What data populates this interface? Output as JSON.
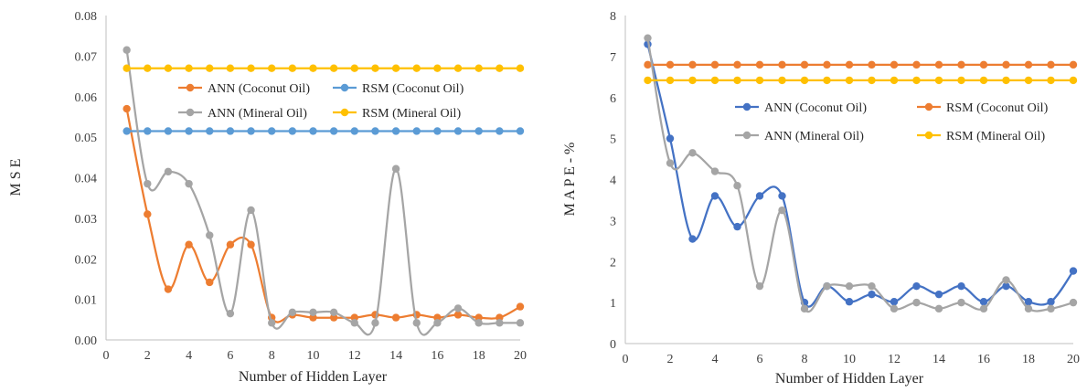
{
  "chart_data": [
    {
      "type": "line",
      "title": "",
      "xlabel": "Number of Hidden Layer",
      "ylabel": "M S E",
      "xlim": [
        0,
        20
      ],
      "ylim": [
        0,
        0.08
      ],
      "xticks": [
        0,
        2,
        4,
        6,
        8,
        10,
        12,
        14,
        16,
        18,
        20
      ],
      "yticks": [
        0,
        0.01,
        0.02,
        0.03,
        0.04,
        0.05,
        0.06,
        0.07,
        0.08
      ],
      "ytick_labels": [
        "0.00",
        "0.01",
        "0.02",
        "0.03",
        "0.04",
        "0.05",
        "0.06",
        "0.07",
        "0.08"
      ],
      "grid": false,
      "legend_position": "upper-center",
      "x": [
        1,
        2,
        3,
        4,
        5,
        6,
        7,
        8,
        9,
        10,
        11,
        12,
        13,
        14,
        15,
        16,
        17,
        18,
        19,
        20
      ],
      "series": [
        {
          "name": "ANN (Coconut Oil)",
          "color": "#ED7D31",
          "values": [
            0.057,
            0.031,
            0.0125,
            0.0235,
            0.0142,
            0.0235,
            0.0235,
            0.0055,
            0.0062,
            0.0055,
            0.0055,
            0.0055,
            0.0062,
            0.0055,
            0.0062,
            0.0055,
            0.0062,
            0.0055,
            0.0055,
            0.0082
          ]
        },
        {
          "name": "RSM (Coconut Oil)",
          "color": "#5B9BD5",
          "values": [
            0.0515,
            0.0515,
            0.0515,
            0.0515,
            0.0515,
            0.0515,
            0.0515,
            0.0515,
            0.0515,
            0.0515,
            0.0515,
            0.0515,
            0.0515,
            0.0515,
            0.0515,
            0.0515,
            0.0515,
            0.0515,
            0.0515,
            0.0515
          ]
        },
        {
          "name": "ANN (Mineral Oil)",
          "color": "#A5A5A5",
          "values": [
            0.0715,
            0.0385,
            0.0415,
            0.0385,
            0.0258,
            0.0065,
            0.032,
            0.0042,
            0.0068,
            0.0068,
            0.0068,
            0.0042,
            0.0042,
            0.0422,
            0.0042,
            0.0042,
            0.0078,
            0.0042,
            0.0042,
            0.0042
          ]
        },
        {
          "name": "RSM (Mineral Oil)",
          "color": "#FFC000",
          "values": [
            0.067,
            0.067,
            0.067,
            0.067,
            0.067,
            0.067,
            0.067,
            0.067,
            0.067,
            0.067,
            0.067,
            0.067,
            0.067,
            0.067,
            0.067,
            0.067,
            0.067,
            0.067,
            0.067,
            0.067
          ]
        }
      ]
    },
    {
      "type": "line",
      "title": "",
      "xlabel": "Number of Hidden Layer",
      "ylabel": "M A P E - %",
      "xlim": [
        0,
        20
      ],
      "ylim": [
        0,
        8
      ],
      "xticks": [
        0,
        2,
        4,
        6,
        8,
        10,
        12,
        14,
        16,
        18,
        20
      ],
      "yticks": [
        0,
        1,
        2,
        3,
        4,
        5,
        6,
        7,
        8
      ],
      "ytick_labels": [
        "0",
        "1",
        "2",
        "3",
        "4",
        "5",
        "6",
        "7",
        "8"
      ],
      "grid": false,
      "legend_position": "center-right",
      "x": [
        1,
        2,
        3,
        4,
        5,
        6,
        7,
        8,
        9,
        10,
        11,
        12,
        13,
        14,
        15,
        16,
        17,
        18,
        19,
        20
      ],
      "series": [
        {
          "name": "ANN (Coconut Oil)",
          "color": "#4472C4",
          "values": [
            7.3,
            5.0,
            2.55,
            3.6,
            2.85,
            3.6,
            3.6,
            1.0,
            1.4,
            1.02,
            1.2,
            1.02,
            1.4,
            1.2,
            1.4,
            1.02,
            1.4,
            1.02,
            1.02,
            1.77
          ]
        },
        {
          "name": "RSM (Coconut Oil)",
          "color": "#ED7D31",
          "values": [
            6.8,
            6.8,
            6.8,
            6.8,
            6.8,
            6.8,
            6.8,
            6.8,
            6.8,
            6.8,
            6.8,
            6.8,
            6.8,
            6.8,
            6.8,
            6.8,
            6.8,
            6.8,
            6.8,
            6.8
          ]
        },
        {
          "name": "ANN (Mineral Oil)",
          "color": "#A5A5A5",
          "values": [
            7.45,
            4.4,
            4.65,
            4.2,
            3.85,
            1.4,
            3.25,
            0.85,
            1.4,
            1.4,
            1.4,
            0.85,
            1.0,
            0.85,
            1.0,
            0.85,
            1.55,
            0.85,
            0.85,
            1.0
          ]
        },
        {
          "name": "RSM (Mineral Oil)",
          "color": "#FFC000",
          "values": [
            6.42,
            6.42,
            6.42,
            6.42,
            6.42,
            6.42,
            6.42,
            6.42,
            6.42,
            6.42,
            6.42,
            6.42,
            6.42,
            6.42,
            6.42,
            6.42,
            6.42,
            6.42,
            6.42,
            6.42
          ]
        }
      ]
    }
  ]
}
